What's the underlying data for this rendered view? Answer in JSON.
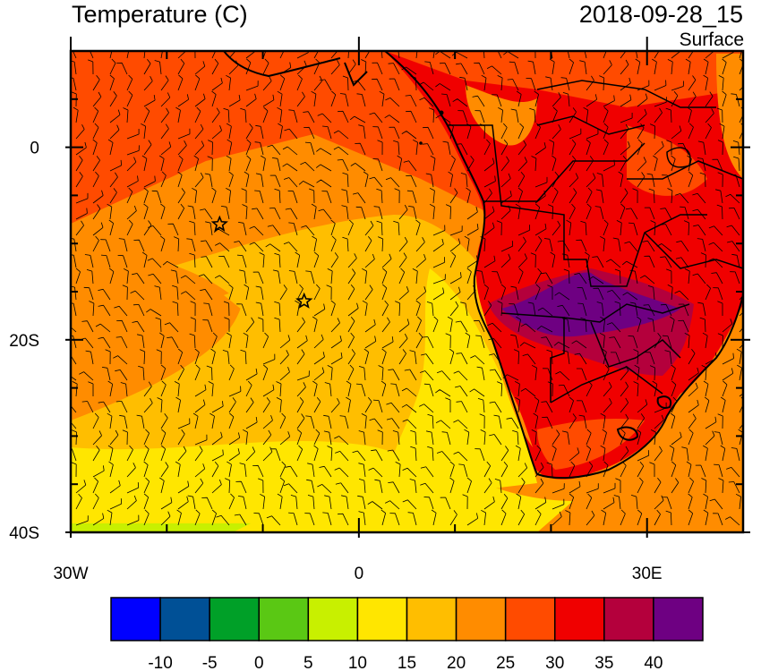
{
  "title": "Temperature (C)",
  "datetime": "2018-09-28_15",
  "level": "Surface",
  "map": {
    "lon_range": [
      -30,
      40
    ],
    "lat_range": [
      -40,
      10
    ],
    "x_ticks": [
      {
        "value": -30,
        "label": "30W"
      },
      {
        "value": 0,
        "label": "0"
      },
      {
        "value": 30,
        "label": "30E"
      }
    ],
    "y_ticks": [
      {
        "value": 0,
        "label": "0"
      },
      {
        "value": -20,
        "label": "20S"
      },
      {
        "value": -40,
        "label": "40S"
      }
    ],
    "markers": [
      {
        "name": "station-star-1",
        "lon": -14.5,
        "lat": -8.0
      },
      {
        "name": "station-star-2",
        "lon": -5.7,
        "lat": -16.0
      }
    ],
    "wind_barbs": "shown",
    "coastlines": "shown",
    "country_borders": "shown"
  },
  "colorbar": {
    "colors": [
      "#0000ff",
      "#005096",
      "#00a028",
      "#5ac814",
      "#c8f000",
      "#ffe600",
      "#ffbe00",
      "#ff8c00",
      "#ff4b00",
      "#f00000",
      "#b4003c",
      "#6e0082"
    ],
    "labels": [
      "-10",
      "-5",
      "0",
      "5",
      "10",
      "15",
      "20",
      "25",
      "30",
      "35",
      "40"
    ]
  }
}
